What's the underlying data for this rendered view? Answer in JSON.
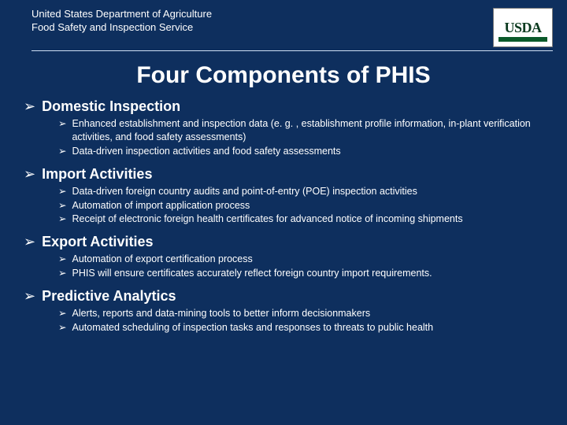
{
  "colors": {
    "background": "#0e2f5e",
    "text": "#ffffff",
    "rule": "#cfe0f5",
    "logo_bg": "#ffffff",
    "logo_text": "#0b3a1f",
    "logo_bar": "#0b5a2a"
  },
  "typography": {
    "title_fontsize": 30,
    "section_head_fontsize": 18,
    "body_fontsize": 12.5,
    "header_fontsize": 13,
    "font_family": "Arial"
  },
  "header": {
    "line1": "United States Department of Agriculture",
    "line2": "Food Safety and Inspection Service",
    "logo_text": "USDA"
  },
  "title": "Four Components of PHIS",
  "bullet_glyph": "➢",
  "sections": [
    {
      "heading": "Domestic Inspection",
      "items": [
        "Enhanced establishment and inspection data (e. g. , establishment profile information, in-plant verification activities, and food safety assessments)",
        "Data-driven inspection activities and food safety assessments"
      ]
    },
    {
      "heading": "Import Activities",
      "items": [
        "Data-driven foreign country audits and point-of-entry (POE) inspection activities",
        "Automation of import application process",
        "Receipt of electronic foreign health certificates for advanced notice of incoming shipments"
      ]
    },
    {
      "heading": "Export Activities",
      "items": [
        "Automation of export certification process",
        "PHIS will ensure certificates accurately reflect foreign country import requirements."
      ]
    },
    {
      "heading": "Predictive Analytics",
      "items": [
        "Alerts, reports and data-mining tools to better inform decisionmakers",
        "Automated scheduling of inspection tasks and responses to threats to public health"
      ]
    }
  ]
}
